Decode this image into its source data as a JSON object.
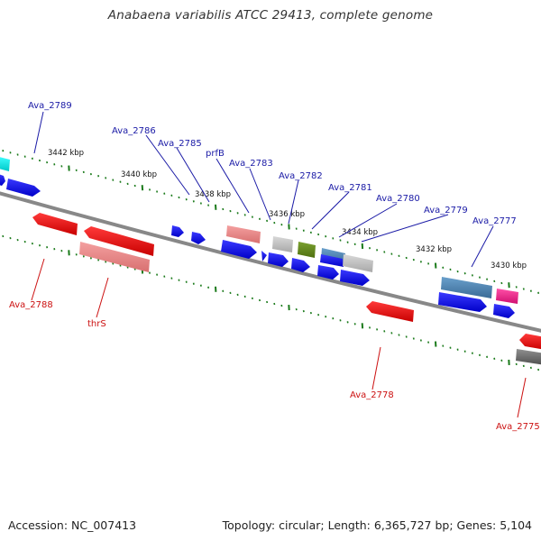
{
  "title": "Anabaena variabilis ATCC 29413, complete genome",
  "footer": {
    "accession": "Accession: NC_007413",
    "topology": "Topology: circular; Length: 6,365,727 bp; Genes: 5,104"
  },
  "ruler": {
    "kbp_labels": [
      "3442 kbp",
      "3440 kbp",
      "3438 kbp",
      "3436 kbp",
      "3434 kbp",
      "3432 kbp",
      "3430 kbp"
    ]
  },
  "gene_labels": {
    "top": [
      "Ava_2789",
      "Ava_2786",
      "Ava_2785",
      "prfB",
      "Ava_2783",
      "Ava_2782",
      "Ava_2781",
      "Ava_2780",
      "Ava_2779",
      "Ava_2777"
    ],
    "bottom": [
      "Ava_2788",
      "thrS",
      "Ava_2778",
      "Ava_2775"
    ]
  },
  "colors": {
    "forward_cds": "#0000e6",
    "reverse_cds": "#ee0000",
    "backbone": "#808080",
    "ruler_tick": "#1a7a1a",
    "label_top": "#1a1aa6",
    "label_bottom": "#cc1111"
  }
}
